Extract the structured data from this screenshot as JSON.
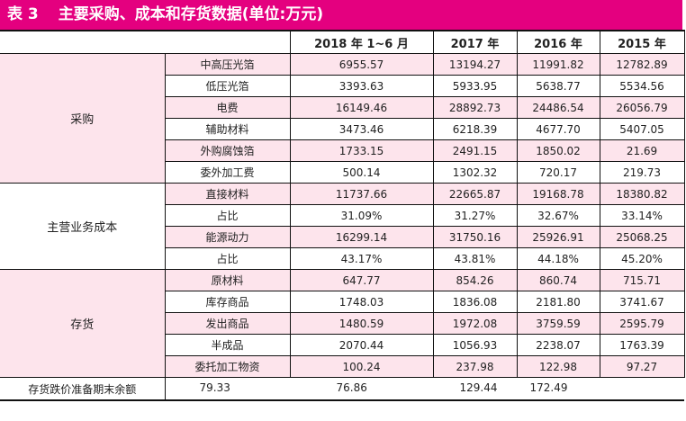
{
  "title": {
    "number": "表 3",
    "text": "主要采购、成本和存货数据(单位:万元)"
  },
  "headers": [
    "2018 年 1~6 月",
    "2017 年",
    "2016 年",
    "2015 年"
  ],
  "groups": [
    {
      "name": "采购",
      "rows": [
        {
          "item": "中高压光箔",
          "values": [
            "6955.57",
            "13194.27",
            "11991.82",
            "12782.89"
          ]
        },
        {
          "item": "低压光箔",
          "values": [
            "3393.63",
            "5933.95",
            "5638.77",
            "5534.56"
          ]
        },
        {
          "item": "电费",
          "values": [
            "16149.46",
            "28892.73",
            "24486.54",
            "26056.79"
          ]
        },
        {
          "item": "辅助材料",
          "values": [
            "3473.46",
            "6218.39",
            "4677.70",
            "5407.05"
          ]
        },
        {
          "item": "外购腐蚀箔",
          "values": [
            "1733.15",
            "2491.15",
            "1850.02",
            "21.69"
          ]
        },
        {
          "item": "委外加工费",
          "values": [
            "500.14",
            "1302.32",
            "720.17",
            "219.73"
          ]
        }
      ]
    },
    {
      "name": "主营业务成本",
      "rows": [
        {
          "item": "直接材料",
          "values": [
            "11737.66",
            "22665.87",
            "19168.78",
            "18380.82"
          ]
        },
        {
          "item": "占比",
          "values": [
            "31.09%",
            "31.27%",
            "32.67%",
            "33.14%"
          ]
        },
        {
          "item": "能源动力",
          "values": [
            "16299.14",
            "31750.16",
            "25926.91",
            "25068.25"
          ]
        },
        {
          "item": "占比",
          "values": [
            "43.17%",
            "43.81%",
            "44.18%",
            "45.20%"
          ]
        }
      ]
    },
    {
      "name": "存货",
      "rows": [
        {
          "item": "原材料",
          "values": [
            "647.77",
            "854.26",
            "860.74",
            "715.71"
          ]
        },
        {
          "item": "库存商品",
          "values": [
            "1748.03",
            "1836.08",
            "2181.80",
            "3741.67"
          ]
        },
        {
          "item": "发出商品",
          "values": [
            "1480.59",
            "1972.08",
            "3759.59",
            "2595.79"
          ]
        },
        {
          "item": "半成品",
          "values": [
            "2070.44",
            "1056.93",
            "2238.07",
            "1763.39"
          ]
        },
        {
          "item": "委托加工物资",
          "values": [
            "100.24",
            "237.98",
            "122.98",
            "97.27"
          ]
        }
      ]
    }
  ],
  "footer": {
    "label": "存货跌价准备期末余额",
    "values": [
      "79.33",
      "76.86",
      "129.44",
      "172.49"
    ]
  },
  "colors": {
    "title_bg": "#e4007f",
    "row_highlight": "#fde4ec"
  }
}
